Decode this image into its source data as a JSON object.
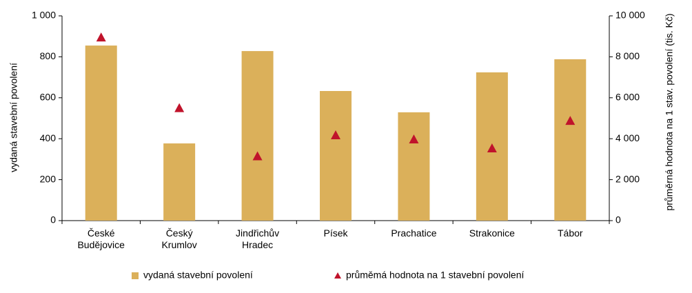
{
  "chart_data": {
    "type": "bar",
    "categories": [
      "České Budějovice",
      "Český Krumlov",
      "Jindřichův Hradec",
      "Písek",
      "Prachatice",
      "Strakonice",
      "Tábor"
    ],
    "ylabel": "vydaná stavební povolení",
    "y2label": "průměrná hodnota na 1 stav. povolení (tis. Kč)",
    "series": [
      {
        "name": "vydaná stavební povolení",
        "type": "bar",
        "color": "#dbb05a",
        "values": [
          855,
          377,
          828,
          633,
          529,
          724,
          788
        ]
      },
      {
        "name": "průměmá hodnota na 1 stavební povolení",
        "type": "scatter",
        "axis": "y2",
        "color": "#c0132b",
        "values": [
          8950,
          5500,
          3150,
          4175,
          3975,
          3535,
          4880
        ]
      }
    ],
    "ylim": [
      0,
      1000
    ],
    "yticks": [
      0,
      200,
      400,
      600,
      800,
      {
        "value": 1000,
        "label": "1 000"
      }
    ],
    "y2lim": [
      0,
      10000
    ],
    "y2ticks": [
      0,
      {
        "value": 2000,
        "label": "2 000"
      },
      {
        "value": 4000,
        "label": "4 000"
      },
      {
        "value": 6000,
        "label": "6 000"
      },
      {
        "value": 8000,
        "label": "8 000"
      },
      {
        "value": 10000,
        "label": "10 000"
      }
    ],
    "legend": "bottom"
  }
}
